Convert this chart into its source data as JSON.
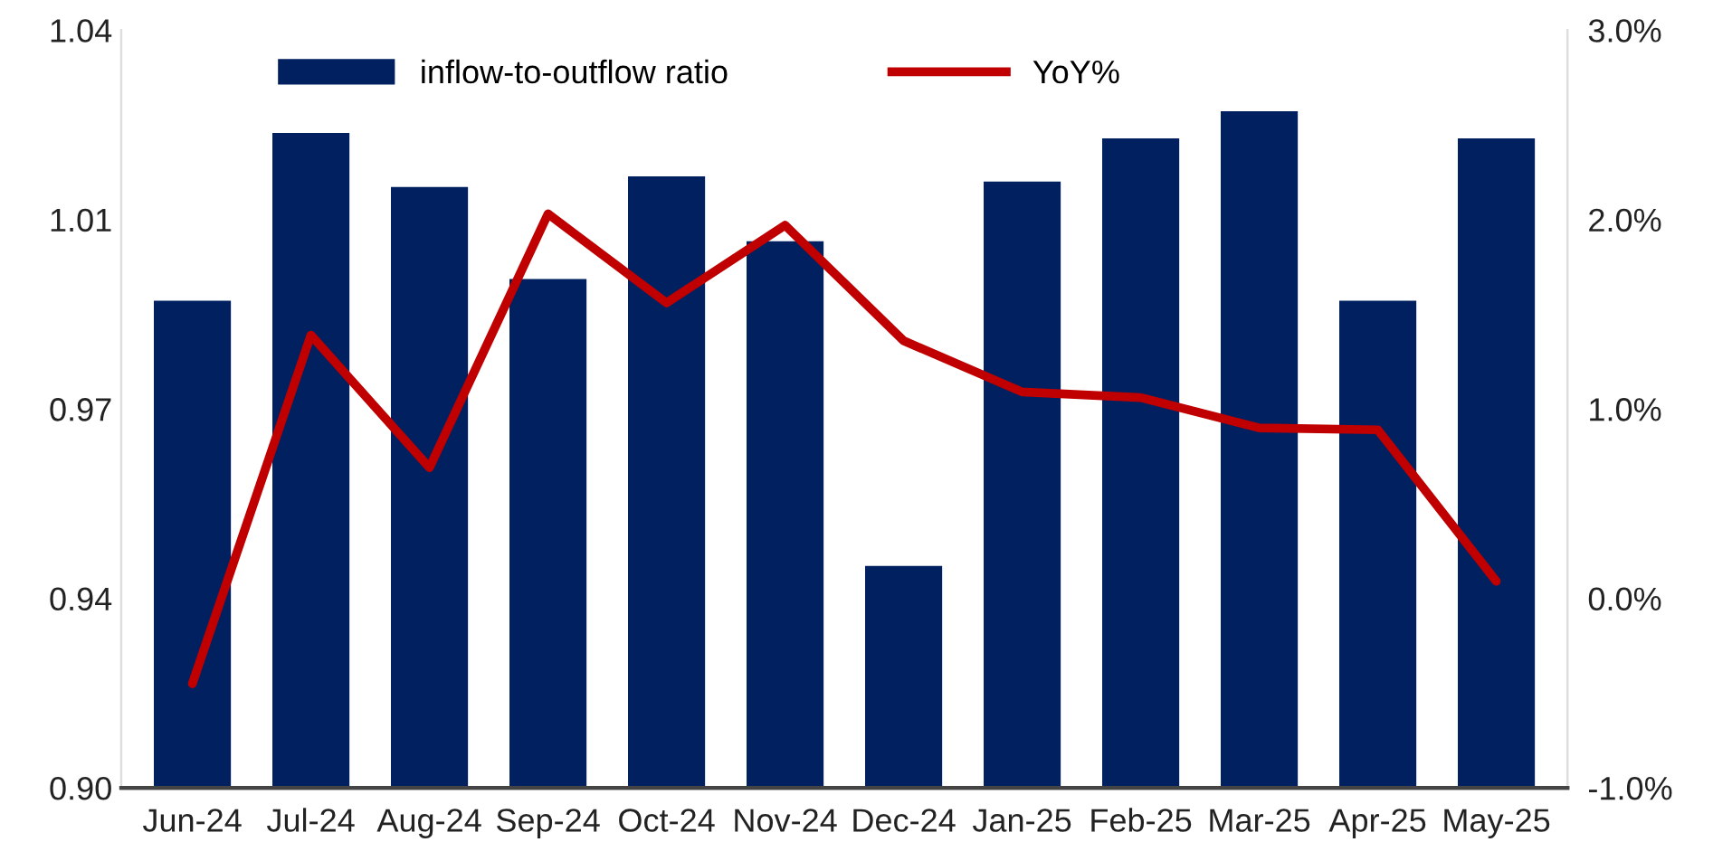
{
  "chart_data": {
    "type": "bar",
    "categories": [
      "Jun-24",
      "Jul-24",
      "Aug-24",
      "Sep-24",
      "Oct-24",
      "Nov-24",
      "Dec-24",
      "Jan-25",
      "Feb-25",
      "Mar-25",
      "Apr-25",
      "May-25"
    ],
    "series": [
      {
        "name": "inflow-to-outflow ratio",
        "color": "#002060",
        "values": [
          0.99,
          1.021,
          1.011,
          0.994,
          1.013,
          1.001,
          0.941,
          1.012,
          1.02,
          1.025,
          0.99,
          1.02
        ]
      },
      {
        "name": "YoY%",
        "type": "line",
        "axis": "y2",
        "color": "#c00000",
        "values": [
          -0.45,
          1.39,
          0.69,
          2.03,
          1.56,
          1.97,
          1.36,
          1.09,
          1.06,
          0.9,
          0.89,
          0.09
        ]
      }
    ],
    "ylim": [
      0.9,
      1.04
    ],
    "yticks": [
      {
        "value": 0.9,
        "label": "0.90"
      },
      {
        "value": 0.935,
        "label": "0.94"
      },
      {
        "value": 0.97,
        "label": "0.97"
      },
      {
        "value": 1.005,
        "label": "1.01"
      },
      {
        "value": 1.04,
        "label": "1.04"
      }
    ],
    "y2lim": [
      -1.0,
      3.0
    ],
    "y2ticks": [
      {
        "value": -1.0,
        "label": "-1.0%"
      },
      {
        "value": 0.0,
        "label": "0.0%"
      },
      {
        "value": 1.0,
        "label": "1.0%"
      },
      {
        "value": 2.0,
        "label": "2.0%"
      },
      {
        "value": 3.0,
        "label": "3.0%"
      }
    ],
    "legend": "top",
    "grid": false
  }
}
